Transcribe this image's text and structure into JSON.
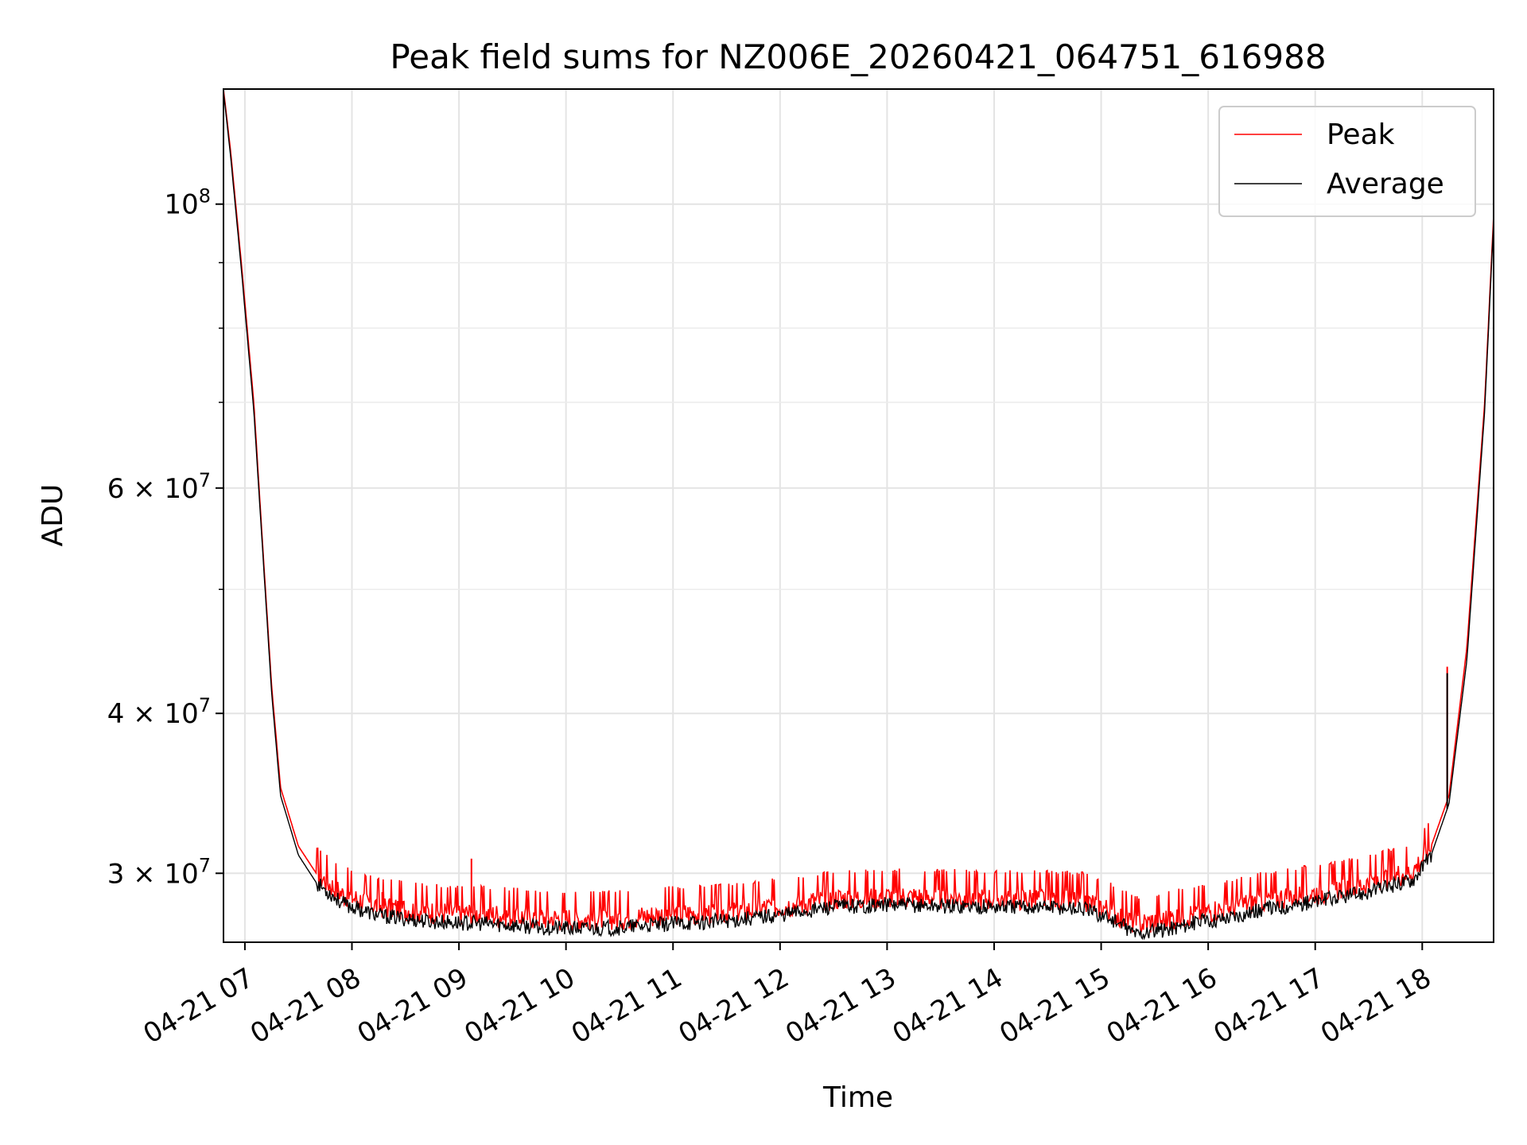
{
  "chart_data": {
    "type": "line",
    "title": "Peak field sums for NZ006E_20260421_064751_616988",
    "xlabel": "Time",
    "ylabel": "ADU",
    "y_scale": "log",
    "ylim": [
      26500000,
      123000000
    ],
    "xlim": [
      "04-21 06:48",
      "04-21 18:40"
    ],
    "x_tick_labels": [
      "04-21 07",
      "04-21 08",
      "04-21 09",
      "04-21 10",
      "04-21 11",
      "04-21 12",
      "04-21 13",
      "04-21 14",
      "04-21 15",
      "04-21 16",
      "04-21 17",
      "04-21 18"
    ],
    "x_tick_times": [
      "04-21 07:00",
      "04-21 08:00",
      "04-21 09:00",
      "04-21 10:00",
      "04-21 11:00",
      "04-21 12:00",
      "04-21 13:00",
      "04-21 14:00",
      "04-21 15:00",
      "04-21 16:00",
      "04-21 17:00",
      "04-21 18:00"
    ],
    "y_tick_labels": [
      {
        "value": 100000000,
        "base": "10",
        "exp": "8"
      },
      {
        "value": 60000000,
        "base": "6 × 10",
        "exp": "7"
      },
      {
        "value": 40000000,
        "base": "4 × 10",
        "exp": "7"
      },
      {
        "value": 30000000,
        "base": "3 × 10",
        "exp": "7"
      }
    ],
    "y_minor_ticks": [
      50000000,
      70000000,
      80000000,
      90000000
    ],
    "grid": true,
    "legend_position": "top-right",
    "series": [
      {
        "name": "Peak",
        "color": "#ff0000",
        "times": [
          "04-21 06:48",
          "04-21 06:52",
          "04-21 06:58",
          "04-21 07:05",
          "04-21 07:10",
          "04-21 07:15",
          "04-21 07:20",
          "04-21 07:30",
          "04-21 07:40",
          "04-21 07:55",
          "04-21 08:15",
          "04-21 08:45",
          "04-21 09:15",
          "04-21 09:50",
          "04-21 10:10",
          "04-21 10:30",
          "04-21 11:00",
          "04-21 11:30",
          "04-21 12:00",
          "04-21 12:30",
          "04-21 13:00",
          "04-21 13:30",
          "04-21 14:00",
          "04-21 14:30",
          "04-21 14:50",
          "04-21 15:05",
          "04-21 15:20",
          "04-21 15:35",
          "04-21 15:50",
          "04-21 16:10",
          "04-21 16:30",
          "04-21 17:00",
          "04-21 17:30",
          "04-21 17:55",
          "04-21 18:05",
          "04-21 18:15",
          "04-21 18:25",
          "04-21 18:35",
          "04-21 18:40"
        ],
        "values": [
          123000000,
          110000000,
          90000000,
          70000000,
          54000000,
          42000000,
          35000000,
          31500000,
          30000000,
          28900000,
          28300000,
          28000000,
          27900000,
          27700000,
          27650000,
          27700000,
          27900000,
          28000000,
          28300000,
          28700000,
          28800000,
          28750000,
          28700000,
          28700000,
          28600000,
          28100000,
          27400000,
          27600000,
          27900000,
          28200000,
          28600000,
          29000000,
          29500000,
          30200000,
          31500000,
          34500000,
          45000000,
          70000000,
          98000000
        ]
      },
      {
        "name": "Average",
        "color": "#000000",
        "times": [
          "04-21 06:48",
          "04-21 06:52",
          "04-21 06:58",
          "04-21 07:05",
          "04-21 07:10",
          "04-21 07:15",
          "04-21 07:20",
          "04-21 07:30",
          "04-21 07:40",
          "04-21 07:55",
          "04-21 08:15",
          "04-21 08:45",
          "04-21 09:15",
          "04-21 09:50",
          "04-21 10:10",
          "04-21 10:30",
          "04-21 11:00",
          "04-21 11:30",
          "04-21 12:00",
          "04-21 12:30",
          "04-21 13:00",
          "04-21 13:30",
          "04-21 14:00",
          "04-21 14:30",
          "04-21 14:50",
          "04-21 15:05",
          "04-21 15:20",
          "04-21 15:35",
          "04-21 15:50",
          "04-21 16:10",
          "04-21 16:30",
          "04-21 17:00",
          "04-21 17:30",
          "04-21 17:55",
          "04-21 18:05",
          "04-21 18:15",
          "04-21 18:25",
          "04-21 18:35",
          "04-21 18:40"
        ],
        "values": [
          122500000,
          109000000,
          89000000,
          69000000,
          53500000,
          41500000,
          34500000,
          31000000,
          29500000,
          28400000,
          27800000,
          27500000,
          27400000,
          27200000,
          27150000,
          27200000,
          27400000,
          27550000,
          27850000,
          28250000,
          28350000,
          28300000,
          28250000,
          28250000,
          28150000,
          27650000,
          26900000,
          27100000,
          27400000,
          27700000,
          28100000,
          28500000,
          29000000,
          29700000,
          31000000,
          34000000,
          44000000,
          69000000,
          97000000
        ]
      }
    ],
    "spikes": [
      {
        "series": "Peak",
        "time": "04-21 09:07",
        "value": 30800000
      },
      {
        "series": "Peak",
        "time": "04-21 08:17",
        "value": 29000000
      },
      {
        "series": "Peak",
        "time": "04-21 18:14",
        "value": 43500000
      },
      {
        "series": "Average",
        "time": "04-21 18:14",
        "value": 43000000
      }
    ]
  }
}
